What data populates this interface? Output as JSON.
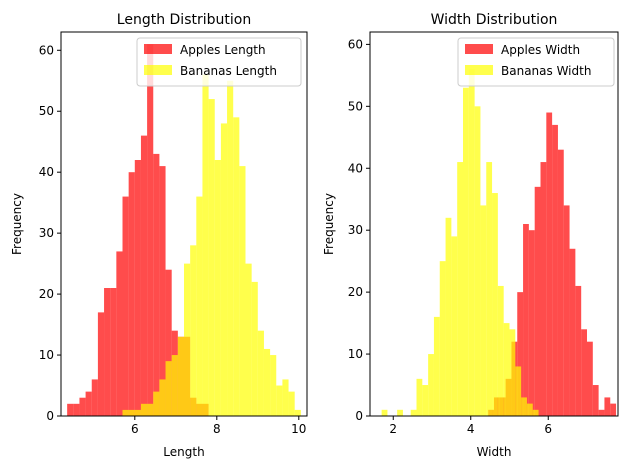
{
  "chart_data": [
    {
      "type": "histogram",
      "title": "Length Distribution",
      "xlabel": "Length",
      "ylabel": "Frequency",
      "xlim": [
        4.2,
        10.2
      ],
      "ylim": [
        0,
        63
      ],
      "xticks": [
        6,
        8,
        10
      ],
      "yticks": [
        0,
        10,
        20,
        30,
        40,
        50,
        60
      ],
      "legend_position": "top-right",
      "series": [
        {
          "name": "Apples Length",
          "color": "#ff0000",
          "alpha": 0.7,
          "bins": [
            [
              4.35,
              4.5,
              2
            ],
            [
              4.5,
              4.65,
              2
            ],
            [
              4.65,
              4.8,
              3
            ],
            [
              4.8,
              4.95,
              4
            ],
            [
              4.95,
              5.1,
              6
            ],
            [
              5.1,
              5.25,
              17
            ],
            [
              5.25,
              5.4,
              21
            ],
            [
              5.4,
              5.55,
              21
            ],
            [
              5.55,
              5.7,
              27
            ],
            [
              5.7,
              5.85,
              36
            ],
            [
              5.85,
              6.0,
              40
            ],
            [
              6.0,
              6.15,
              42
            ],
            [
              6.15,
              6.3,
              46
            ],
            [
              6.3,
              6.45,
              61
            ],
            [
              6.45,
              6.6,
              43
            ],
            [
              6.6,
              6.75,
              41
            ],
            [
              6.75,
              6.9,
              24
            ],
            [
              6.9,
              7.05,
              14
            ],
            [
              7.05,
              7.2,
              13
            ],
            [
              7.2,
              7.35,
              13
            ],
            [
              7.35,
              7.5,
              3
            ],
            [
              7.5,
              7.65,
              2
            ],
            [
              7.65,
              7.8,
              2
            ]
          ]
        },
        {
          "name": "Bananas Length",
          "color": "#ffff00",
          "alpha": 0.7,
          "bins": [
            [
              5.7,
              5.85,
              1
            ],
            [
              5.85,
              6.0,
              1
            ],
            [
              6.0,
              6.15,
              1
            ],
            [
              6.15,
              6.3,
              2
            ],
            [
              6.3,
              6.45,
              2
            ],
            [
              6.45,
              6.6,
              4
            ],
            [
              6.6,
              6.75,
              6
            ],
            [
              6.75,
              6.9,
              9
            ],
            [
              6.9,
              7.05,
              10
            ],
            [
              7.05,
              7.2,
              13
            ],
            [
              7.2,
              7.35,
              25
            ],
            [
              7.35,
              7.5,
              28
            ],
            [
              7.5,
              7.65,
              36
            ],
            [
              7.65,
              7.8,
              56
            ],
            [
              7.8,
              7.95,
              52
            ],
            [
              7.95,
              8.1,
              42
            ],
            [
              8.1,
              8.25,
              48
            ],
            [
              8.25,
              8.4,
              55
            ],
            [
              8.4,
              8.55,
              49
            ],
            [
              8.55,
              8.7,
              41
            ],
            [
              8.7,
              8.85,
              25
            ],
            [
              8.85,
              9.0,
              22
            ],
            [
              9.0,
              9.15,
              14
            ],
            [
              9.15,
              9.3,
              11
            ],
            [
              9.3,
              9.45,
              10
            ],
            [
              9.45,
              9.6,
              5
            ],
            [
              9.6,
              9.75,
              6
            ],
            [
              9.75,
              9.9,
              4
            ],
            [
              9.9,
              10.05,
              1
            ]
          ]
        }
      ]
    },
    {
      "type": "histogram",
      "title": "Width Distribution",
      "xlabel": "Width",
      "ylabel": "Frequency",
      "xlim": [
        1.4,
        7.8
      ],
      "ylim": [
        0,
        62
      ],
      "xticks": [
        2,
        4,
        6
      ],
      "yticks": [
        0,
        10,
        20,
        30,
        40,
        50,
        60
      ],
      "legend_position": "top-right",
      "series": [
        {
          "name": "Apples Width",
          "color": "#ff0000",
          "alpha": 0.7,
          "bins": [
            [
              4.45,
              4.6,
              1
            ],
            [
              4.6,
              4.75,
              3
            ],
            [
              4.75,
              4.9,
              3
            ],
            [
              4.9,
              5.05,
              6
            ],
            [
              5.05,
              5.2,
              12
            ],
            [
              5.2,
              5.35,
              20
            ],
            [
              5.35,
              5.5,
              31
            ],
            [
              5.5,
              5.65,
              30
            ],
            [
              5.65,
              5.8,
              37
            ],
            [
              5.8,
              5.95,
              41
            ],
            [
              5.95,
              6.1,
              49
            ],
            [
              6.1,
              6.25,
              47
            ],
            [
              6.25,
              6.4,
              43
            ],
            [
              6.4,
              6.55,
              34
            ],
            [
              6.55,
              6.7,
              27
            ],
            [
              6.7,
              6.85,
              21
            ],
            [
              6.85,
              7.0,
              14
            ],
            [
              7.0,
              7.15,
              12
            ],
            [
              7.15,
              7.3,
              5
            ],
            [
              7.3,
              7.45,
              1
            ],
            [
              7.45,
              7.6,
              3
            ],
            [
              7.6,
              7.75,
              2
            ]
          ]
        },
        {
          "name": "Bananas Width",
          "color": "#ffff00",
          "alpha": 0.7,
          "bins": [
            [
              1.7,
              1.85,
              1
            ],
            [
              2.1,
              2.25,
              1
            ],
            [
              2.45,
              2.6,
              1
            ],
            [
              2.6,
              2.75,
              6
            ],
            [
              2.75,
              2.9,
              5
            ],
            [
              2.9,
              3.05,
              10
            ],
            [
              3.05,
              3.2,
              16
            ],
            [
              3.2,
              3.35,
              25
            ],
            [
              3.35,
              3.5,
              32
            ],
            [
              3.5,
              3.65,
              29
            ],
            [
              3.65,
              3.8,
              41
            ],
            [
              3.8,
              3.95,
              53
            ],
            [
              3.95,
              4.1,
              56
            ],
            [
              4.1,
              4.25,
              50
            ],
            [
              4.25,
              4.4,
              34
            ],
            [
              4.4,
              4.55,
              41
            ],
            [
              4.55,
              4.7,
              36
            ],
            [
              4.7,
              4.85,
              21
            ],
            [
              4.85,
              5.0,
              15
            ],
            [
              5.0,
              5.15,
              14
            ],
            [
              5.15,
              5.3,
              8
            ],
            [
              5.3,
              5.45,
              3
            ],
            [
              5.45,
              5.6,
              2
            ],
            [
              5.6,
              5.75,
              1
            ]
          ]
        }
      ]
    }
  ]
}
